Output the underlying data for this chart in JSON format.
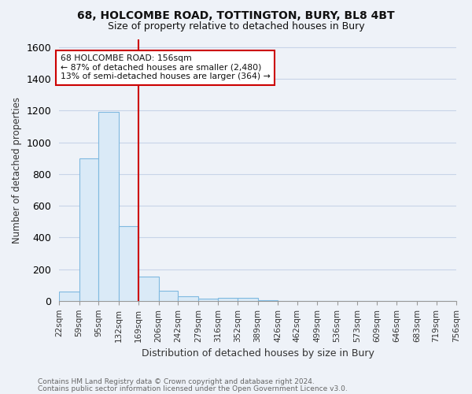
{
  "title1": "68, HOLCOMBE ROAD, TOTTINGTON, BURY, BL8 4BT",
  "title2": "Size of property relative to detached houses in Bury",
  "xlabel": "Distribution of detached houses by size in Bury",
  "ylabel": "Number of detached properties",
  "footnote1": "Contains HM Land Registry data © Crown copyright and database right 2024.",
  "footnote2": "Contains public sector information licensed under the Open Government Licence v3.0.",
  "bins": [
    22,
    59,
    95,
    132,
    169,
    206,
    242,
    279,
    316,
    352,
    389,
    426,
    462,
    499,
    536,
    573,
    609,
    646,
    683,
    719,
    756
  ],
  "bin_labels": [
    "22sqm",
    "59sqm",
    "95sqm",
    "132sqm",
    "169sqm",
    "206sqm",
    "242sqm",
    "279sqm",
    "316sqm",
    "352sqm",
    "389sqm",
    "426sqm",
    "462sqm",
    "499sqm",
    "536sqm",
    "573sqm",
    "609sqm",
    "646sqm",
    "683sqm",
    "719sqm",
    "756sqm"
  ],
  "bar_heights": [
    58,
    900,
    1195,
    470,
    152,
    62,
    28,
    15,
    18,
    20,
    2,
    0,
    0,
    0,
    0,
    0,
    0,
    0,
    0,
    0
  ],
  "bar_color": "#daeaf7",
  "bar_edgecolor": "#7fb9e0",
  "property_line_x": 169,
  "property_line_color": "#cc0000",
  "ylim": [
    0,
    1650
  ],
  "yticks": [
    0,
    200,
    400,
    600,
    800,
    1000,
    1200,
    1400,
    1600
  ],
  "annotation_line1": "68 HOLCOMBE ROAD: 156sqm",
  "annotation_line2": "← 87% of detached houses are smaller (2,480)",
  "annotation_line3": "13% of semi-detached houses are larger (364) →",
  "annotation_box_color": "#ffffff",
  "annotation_box_edgecolor": "#cc0000",
  "background_color": "#eef2f8",
  "plot_bg_color": "#eef2f8",
  "grid_color": "#c8d4e8",
  "title1_fontsize": 10,
  "title2_fontsize": 9
}
